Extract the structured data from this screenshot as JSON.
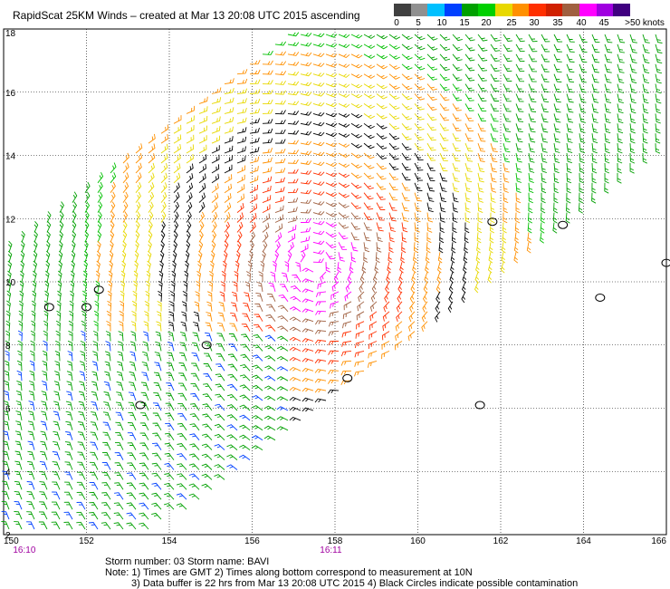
{
  "title": "RapidScat 25KM Winds – created at Mar 13 20:08 UTC 2015 ascending",
  "color_scale": {
    "labels": [
      "0",
      "5",
      "10",
      "15",
      "20",
      "25",
      "30",
      "35",
      "40",
      "45",
      ">50 knots"
    ],
    "colors": [
      "#404040",
      "#909090",
      "#00c0ff",
      "#0040ff",
      "#00a000",
      "#00d000",
      "#e8d800",
      "#ff9000",
      "#ff3000",
      "#d02000",
      "#a06040",
      "#ff00ff",
      "#a000e0",
      "#400080"
    ]
  },
  "map": {
    "lon_labels": [
      "150",
      "152",
      "154",
      "156",
      "158",
      "160",
      "162",
      "164",
      "166"
    ],
    "lat_labels": [
      "2",
      "4",
      "6",
      "8",
      "10",
      "12",
      "14",
      "16",
      "18"
    ],
    "time_labels": [
      "16:10",
      "16:11"
    ],
    "lon_range": [
      150,
      166
    ],
    "lat_range": [
      2,
      18
    ],
    "storm_center_lon": 157.5,
    "storm_center_lat": 10.5
  },
  "footer": {
    "line1": "Storm number: 03     Storm name: BAVI",
    "line2": "Note: 1) Times are GMT  2) Times along bottom correspond to measurement at 10N",
    "line3": "3) Data buffer is 22 hrs from Mar 13 20:08 UTC 2015   4) Black Circles indicate possible contamination"
  }
}
